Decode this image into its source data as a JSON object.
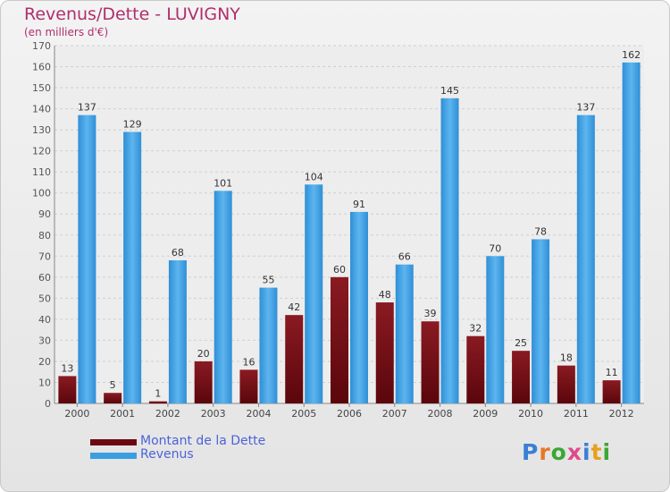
{
  "title": "Revenus/Dette - LUVIGNY",
  "subtitle": "(en milliers d'€)",
  "logo": "Proxiti",
  "colors": {
    "dette": "#7a0c14",
    "revenus": "#3a9fe0",
    "title": "#b02e6d",
    "legend_text": "#4d62d9"
  },
  "chart_data": {
    "type": "bar",
    "title": "Revenus/Dette - LUVIGNY",
    "ylabel": "(en milliers d'€)",
    "categories": [
      "2000",
      "2001",
      "2002",
      "2003",
      "2004",
      "2005",
      "2006",
      "2007",
      "2008",
      "2009",
      "2010",
      "2011",
      "2012"
    ],
    "series": [
      {
        "name": "Montant de la Dette",
        "values": [
          13,
          5,
          1,
          20,
          16,
          42,
          60,
          48,
          39,
          32,
          25,
          18,
          11
        ]
      },
      {
        "name": "Revenus",
        "values": [
          137,
          129,
          68,
          101,
          55,
          104,
          91,
          66,
          145,
          70,
          78,
          137,
          162
        ]
      }
    ],
    "ylim": [
      0,
      170
    ],
    "yticks": [
      0,
      10,
      20,
      30,
      40,
      50,
      60,
      70,
      80,
      90,
      100,
      110,
      120,
      130,
      140,
      150,
      160,
      170
    ],
    "grid": true,
    "legend": "bottom-left"
  }
}
